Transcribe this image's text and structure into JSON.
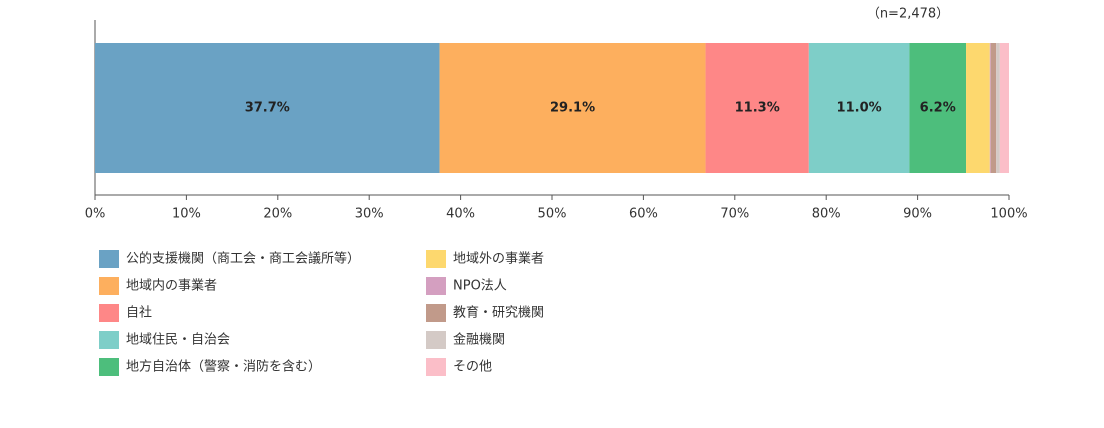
{
  "chart_data": {
    "type": "stacked-bar",
    "orientation": "horizontal",
    "annotation": "（n=2,478）",
    "categories": [
      null
    ],
    "series": [
      {
        "name": "公的支援機関（商工会・商工会議所等）",
        "color": "#6aa2c4",
        "values": [
          37.7
        ],
        "value_labels": [
          "37.7%"
        ]
      },
      {
        "name": "地域内の事業者",
        "color": "#fdaf5e",
        "values": [
          29.1
        ],
        "value_labels": [
          "29.1%"
        ]
      },
      {
        "name": "自社",
        "color": "#fe8787",
        "values": [
          11.3
        ],
        "value_labels": [
          "11.3%"
        ]
      },
      {
        "name": "地域住民・自治会",
        "color": "#7ecec8",
        "values": [
          11.0
        ],
        "value_labels": [
          "11.0%"
        ]
      },
      {
        "name": "地方自治体（警察・消防を含む）",
        "color": "#4dbe7c",
        "values": [
          6.2
        ],
        "value_labels": [
          "6.2%"
        ]
      },
      {
        "name": "地域外の事業者",
        "color": "#fdd86e",
        "values": [
          2.6
        ]
      },
      {
        "name": "NPO法人",
        "color": "#d49fc0",
        "values": [
          0.1
        ]
      },
      {
        "name": "教育・研究機関",
        "color": "#c19a8a",
        "values": [
          0.6
        ]
      },
      {
        "name": "金融機関",
        "color": "#d4cac6",
        "values": [
          0.4
        ]
      },
      {
        "name": "その他",
        "color": "#fbbec8",
        "values": [
          1.0
        ]
      }
    ],
    "xlim": [
      0,
      100
    ],
    "xticks": [
      {
        "value": 0,
        "label": "0%"
      },
      {
        "value": 10,
        "label": "10%"
      },
      {
        "value": 20,
        "label": "20%"
      },
      {
        "value": 30,
        "label": "30%"
      },
      {
        "value": 40,
        "label": "40%"
      },
      {
        "value": 50,
        "label": "50%"
      },
      {
        "value": 60,
        "label": "60%"
      },
      {
        "value": 70,
        "label": "70%"
      },
      {
        "value": 80,
        "label": "80%"
      },
      {
        "value": 90,
        "label": "90%"
      },
      {
        "value": 100,
        "label": "100%"
      }
    ]
  }
}
